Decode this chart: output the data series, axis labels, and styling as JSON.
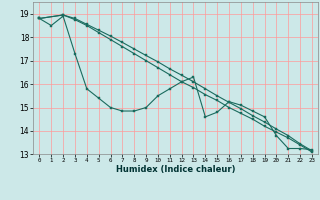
{
  "title": "",
  "xlabel": "Humidex (Indice chaleur)",
  "ylabel": "",
  "bg_color": "#cce8e8",
  "grid_color": "#ff9999",
  "line_color": "#1a6b5e",
  "xlim": [
    -0.5,
    23.5
  ],
  "ylim": [
    13.0,
    19.5
  ],
  "yticks": [
    13,
    14,
    15,
    16,
    17,
    18,
    19
  ],
  "xticks": [
    0,
    1,
    2,
    3,
    4,
    5,
    6,
    7,
    8,
    9,
    10,
    11,
    12,
    13,
    14,
    15,
    16,
    17,
    18,
    19,
    20,
    21,
    22,
    23
  ],
  "series1_x": [
    0,
    1,
    2,
    3,
    4,
    5,
    6,
    7,
    8,
    9,
    10,
    11,
    12,
    13,
    14,
    15,
    16,
    17,
    18,
    19,
    20,
    21,
    22,
    23
  ],
  "series1_y": [
    18.8,
    18.5,
    18.9,
    17.3,
    15.8,
    15.4,
    15.0,
    14.85,
    14.85,
    15.0,
    15.5,
    15.8,
    16.1,
    16.3,
    14.6,
    14.8,
    15.25,
    15.1,
    14.85,
    14.6,
    13.8,
    13.25,
    13.25,
    13.2
  ],
  "series2_x": [
    0,
    2,
    3,
    4,
    5,
    6,
    7,
    8,
    9,
    10,
    11,
    12,
    13,
    14,
    15,
    16,
    17,
    18,
    19,
    20,
    21,
    22,
    23
  ],
  "series2_y": [
    18.8,
    18.95,
    18.75,
    18.5,
    18.2,
    17.9,
    17.6,
    17.3,
    17.0,
    16.7,
    16.4,
    16.1,
    15.85,
    15.55,
    15.3,
    15.0,
    14.75,
    14.5,
    14.2,
    13.95,
    13.7,
    13.4,
    13.1
  ],
  "series3_x": [
    0,
    2,
    3,
    4,
    5,
    6,
    7,
    8,
    9,
    10,
    11,
    12,
    13,
    14,
    15,
    16,
    17,
    18,
    19,
    20,
    21,
    22,
    23
  ],
  "series3_y": [
    18.8,
    18.95,
    18.8,
    18.55,
    18.3,
    18.05,
    17.78,
    17.5,
    17.22,
    16.95,
    16.65,
    16.38,
    16.1,
    15.8,
    15.5,
    15.22,
    14.95,
    14.65,
    14.38,
    14.08,
    13.8,
    13.45,
    13.15
  ]
}
